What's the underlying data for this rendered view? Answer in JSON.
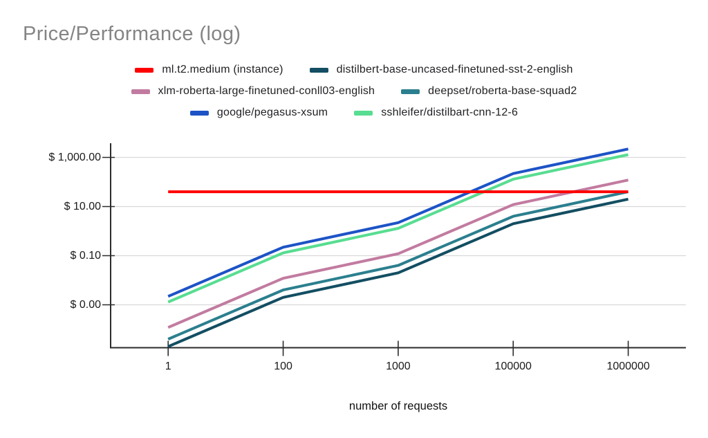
{
  "title": "Price/Performance (log)",
  "chart_data": {
    "type": "line",
    "title": "Price/Performance (log)",
    "xlabel": "number of requests",
    "ylabel": "",
    "x_scale": "category-log",
    "y_scale": "log",
    "categories": [
      1,
      100,
      1000,
      100000,
      1000000
    ],
    "x_tick_labels": [
      "1",
      "100",
      "1000",
      "100000",
      "1000000"
    ],
    "y_gridlines": [
      {
        "value": 1000,
        "label": "$ 1,000.00"
      },
      {
        "value": 10,
        "label": "$ 10.00"
      },
      {
        "value": 0.1,
        "label": "$ 0.10"
      },
      {
        "value": 0.001,
        "label": "$ 0.00"
      }
    ],
    "grid": true,
    "legend_position": "top",
    "series": [
      {
        "name": "ml.t2.medium (instance)",
        "color": "#ff0000",
        "values": [
          40,
          40,
          40,
          40,
          40
        ]
      },
      {
        "name": "distilbert-base-uncased-finetuned-sst-2-english",
        "color": "#134e62",
        "values": [
          2e-05,
          0.002,
          0.02,
          2,
          20
        ]
      },
      {
        "name": "xlm-roberta-large-finetuned-conll03-english",
        "color": "#c27ba0",
        "values": [
          0.00012,
          0.012,
          0.12,
          12,
          120
        ]
      },
      {
        "name": "deepset/roberta-base-squad2",
        "color": "#2b7f8e",
        "values": [
          4e-05,
          0.004,
          0.04,
          4,
          40
        ]
      },
      {
        "name": "google/pegasus-xsum",
        "color": "#1d53c6",
        "values": [
          0.0022,
          0.22,
          2.2,
          220,
          2200
        ]
      },
      {
        "name": "sshleifer/distilbart-cnn-12-6",
        "color": "#58dd91",
        "values": [
          0.0013,
          0.13,
          1.3,
          130,
          1300
        ]
      }
    ]
  },
  "legend": {
    "rows": [
      [
        0,
        1
      ],
      [
        2,
        3
      ],
      [
        4,
        5
      ]
    ]
  },
  "colors": {
    "gridline": "#d9d9d9",
    "axis": "#2b2b2b",
    "title_text": "#848484",
    "label_text": "#1a1a1a"
  }
}
